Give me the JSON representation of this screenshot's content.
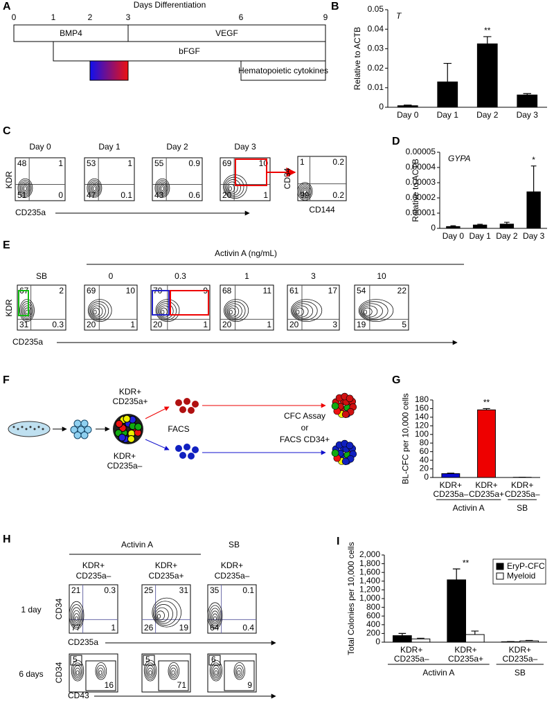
{
  "panel_labels": [
    "A",
    "B",
    "C",
    "D",
    "E",
    "F",
    "G",
    "H",
    "I"
  ],
  "panel_a": {
    "title": "Days Differentiation",
    "days": [
      0,
      1,
      2,
      3,
      6,
      9
    ],
    "factors": [
      "BMP4",
      "VEGF",
      "bFGF",
      "Hematopoietic cytokines"
    ]
  },
  "chart_data": [
    {
      "type": "bar",
      "title": "T",
      "y_label": "Relative to ACTB",
      "categories": [
        "Day 0",
        "Day 1",
        "Day 2",
        "Day 3"
      ],
      "values": [
        0.0008,
        0.013,
        0.0325,
        0.0063
      ],
      "errors": [
        0.0003,
        0.0095,
        0.0037,
        0.0007
      ],
      "color": "#000000",
      "significance": [
        null,
        null,
        "**",
        null
      ],
      "ylim": [
        0,
        0.05
      ],
      "yticks": [
        0,
        0.01,
        0.02,
        0.03,
        0.04,
        0.05
      ]
    },
    {
      "type": "bar",
      "title": "GYPA",
      "y_label": "Relative to ACTB",
      "categories": [
        "Day 0",
        "Day 1",
        "Day 2",
        "Day 3"
      ],
      "values": [
        1.2e-06,
        2.2e-06,
        2.8e-06,
        2.4e-05
      ],
      "errors": [
        5e-07,
        5e-07,
        1.2e-06,
        1.7e-05
      ],
      "color": "#000000",
      "significance": [
        null,
        null,
        null,
        "*"
      ],
      "ylim": [
        0,
        5e-05
      ],
      "yticks": [
        0,
        1e-05,
        2e-05,
        3e-05,
        4e-05,
        5e-05
      ]
    },
    {
      "type": "bar",
      "y_label": "BL-CFC per 10,000 cells",
      "categories": [
        [
          "KDR+",
          "CD235a–"
        ],
        [
          "KDR+",
          "CD235a+"
        ],
        [
          "KDR+",
          "CD235a–"
        ]
      ],
      "values": [
        9,
        157,
        0.5
      ],
      "errors": [
        1,
        3,
        0
      ],
      "colors": [
        "#0a0ad0",
        "#ee0000",
        "#000000"
      ],
      "significance": [
        null,
        "**",
        null
      ],
      "groups": [
        "Activin A",
        "SB"
      ],
      "ylim": [
        0,
        180
      ],
      "yticks": [
        0,
        20,
        40,
        60,
        80,
        100,
        120,
        140,
        160,
        180
      ]
    },
    {
      "type": "bar",
      "y_label": "Total Colonies per 10,000 cells",
      "categories": [
        [
          "KDR+",
          "CD235a–"
        ],
        [
          "KDR+",
          "CD235a+"
        ],
        [
          "KDR+",
          "CD235a–"
        ]
      ],
      "series": [
        {
          "name": "EryP-CFC",
          "color": "#000000",
          "values": [
            150,
            1430,
            10
          ],
          "errors": [
            50,
            250,
            5
          ]
        },
        {
          "name": "Myeloid",
          "color": "#ffffff",
          "values": [
            75,
            175,
            30
          ],
          "errors": [
            15,
            80,
            10
          ]
        }
      ],
      "significance": [
        null,
        "**",
        null
      ],
      "groups": [
        "Activin A",
        "SB"
      ],
      "legend": "upper right",
      "ylim": [
        0,
        2000
      ],
      "yticks": [
        0,
        200,
        400,
        600,
        800,
        {
          "value": 1000,
          "label": "1,000"
        },
        {
          "value": 1200,
          "label": "1,200"
        },
        {
          "value": 1400,
          "label": "1,400"
        },
        {
          "value": 1600,
          "label": "1,600"
        },
        {
          "value": 1800,
          "label": "1,800"
        },
        {
          "value": 2000,
          "label": "2,000"
        }
      ]
    }
  ],
  "panel_c": {
    "columns": [
      "Day 0",
      "Day 1",
      "Day 2",
      "Day 3"
    ],
    "x_label": "CD235a",
    "y_label": "KDR",
    "quadrants": [
      [
        48,
        1,
        51,
        0
      ],
      [
        53,
        1,
        47,
        0.1
      ],
      [
        55,
        0.9,
        43,
        0.6
      ],
      [
        69,
        10,
        20,
        1
      ]
    ],
    "gated": {
      "x_label": "CD144",
      "y_label": "CD34",
      "quadrants": [
        1,
        0.2,
        99,
        0.2
      ]
    }
  },
  "panel_e": {
    "title": "Activin A (ng/mL)",
    "columns": [
      "SB",
      "0",
      "0.3",
      "1",
      "3",
      "10"
    ],
    "x_label": "CD235a",
    "y_label": "KDR",
    "quadrants": [
      [
        67,
        2,
        31,
        0.3
      ],
      [
        69,
        10,
        20,
        1
      ],
      [
        70,
        9,
        20,
        1
      ],
      [
        68,
        11,
        20,
        1
      ],
      [
        61,
        17,
        20,
        3
      ],
      [
        54,
        22,
        19,
        5
      ]
    ]
  },
  "panel_f": {
    "top_population": [
      "KDR+",
      "CD235a+"
    ],
    "bottom_population": [
      "KDR+",
      "CD235a–"
    ],
    "sort": "FACS",
    "readout": [
      "CFC Assay",
      "or",
      "FACS CD34+"
    ]
  },
  "panel_h": {
    "groups": [
      "Activin A",
      "SB"
    ],
    "columns": [
      [
        "KDR+",
        "CD235a–"
      ],
      [
        "KDR+",
        "CD235a+"
      ],
      [
        "KDR+",
        "CD235a–"
      ]
    ],
    "rows": [
      "1 day",
      "6 days"
    ],
    "y_label": "CD34",
    "x_labels": [
      "CD235a",
      "CD43"
    ],
    "day1_quadrants": [
      [
        21,
        0.3,
        77,
        1
      ],
      [
        25,
        31,
        26,
        19
      ],
      [
        35,
        0.1,
        64,
        0.4
      ]
    ],
    "day6_gates": [
      [
        5,
        16
      ],
      [
        5,
        71
      ],
      [
        6,
        9
      ]
    ]
  }
}
